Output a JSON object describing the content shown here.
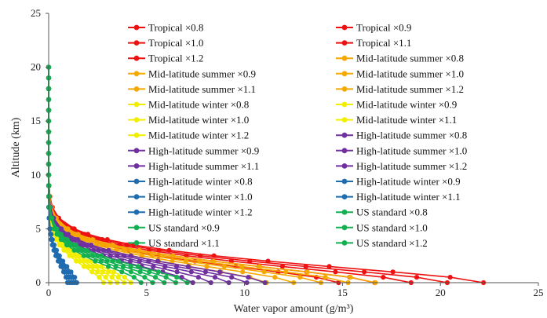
{
  "chart_data": {
    "type": "line",
    "xlabel": "Water vapor amount (g/m³)",
    "ylabel": "Altitude (km)",
    "xlim": [
      0,
      25
    ],
    "ylim": [
      0,
      25
    ],
    "x_ticks": [
      "0",
      "5",
      "10",
      "15",
      "20",
      "25"
    ],
    "y_ticks": [
      "0",
      "5",
      "10",
      "15",
      "20",
      "25"
    ],
    "grid": "none",
    "legend_position": "inside-top",
    "altitudes_km": [
      0,
      0.5,
      1,
      1.5,
      2,
      2.5,
      3,
      3.5,
      4,
      4.5,
      5,
      6,
      7,
      8,
      9,
      10,
      11,
      12,
      13,
      14,
      15,
      16,
      17,
      18,
      19,
      20
    ],
    "base_profiles": {
      "Tropical": {
        "color": "#ee1111",
        "surface": 18.5
      },
      "Mid-latitude summer": {
        "color": "#f5a800",
        "surface": 13.9
      },
      "Mid-latitude winter": {
        "color": "#f2ee00",
        "surface": 3.5
      },
      "High-latitude summer": {
        "color": "#7030a0",
        "surface": 9.2
      },
      "High-latitude winter": {
        "color": "#1f6cb0",
        "surface": 1.2
      },
      "US standard": {
        "color": "#12b050",
        "surface": 5.9
      }
    },
    "scale_factors": [
      0.8,
      0.9,
      1.0,
      1.1,
      1.2
    ],
    "series": [
      {
        "name": "Tropical ×0.8",
        "profile": "Tropical",
        "factor": 0.8
      },
      {
        "name": "Tropical ×0.9",
        "profile": "Tropical",
        "factor": 0.9
      },
      {
        "name": "Tropical ×1.0",
        "profile": "Tropical",
        "factor": 1.0
      },
      {
        "name": "Tropical ×1.1",
        "profile": "Tropical",
        "factor": 1.1
      },
      {
        "name": "Tropical ×1.2",
        "profile": "Tropical",
        "factor": 1.2
      },
      {
        "name": "Mid-latitude summer ×0.8",
        "profile": "Mid-latitude summer",
        "factor": 0.8
      },
      {
        "name": "Mid-latitude summer ×0.9",
        "profile": "Mid-latitude summer",
        "factor": 0.9
      },
      {
        "name": "Mid-latitude summer ×1.0",
        "profile": "Mid-latitude summer",
        "factor": 1.0
      },
      {
        "name": "Mid-latitude summer ×1.1",
        "profile": "Mid-latitude summer",
        "factor": 1.1
      },
      {
        "name": "Mid-latitude summer ×1.2",
        "profile": "Mid-latitude summer",
        "factor": 1.2
      },
      {
        "name": "Mid-latitude winter ×0.8",
        "profile": "Mid-latitude winter",
        "factor": 0.8
      },
      {
        "name": "Mid-latitude winter ×0.9",
        "profile": "Mid-latitude winter",
        "factor": 0.9
      },
      {
        "name": "Mid-latitude winter ×1.0",
        "profile": "Mid-latitude winter",
        "factor": 1.0
      },
      {
        "name": "Mid-latitude winter ×1.1",
        "profile": "Mid-latitude winter",
        "factor": 1.1
      },
      {
        "name": "Mid-latitude winter ×1.2",
        "profile": "Mid-latitude winter",
        "factor": 1.2
      },
      {
        "name": "High-latitude summer ×0.8",
        "profile": "High-latitude summer",
        "factor": 0.8
      },
      {
        "name": "High-latitude summer ×0.9",
        "profile": "High-latitude summer",
        "factor": 0.9
      },
      {
        "name": "High-latitude summer ×1.0",
        "profile": "High-latitude summer",
        "factor": 1.0
      },
      {
        "name": "High-latitude summer ×1.1",
        "profile": "High-latitude summer",
        "factor": 1.1
      },
      {
        "name": "High-latitude summer ×1.2",
        "profile": "High-latitude summer",
        "factor": 1.2
      },
      {
        "name": "High-latitude winter ×0.8",
        "profile": "High-latitude winter",
        "factor": 0.8
      },
      {
        "name": "High-latitude winter ×0.9",
        "profile": "High-latitude winter",
        "factor": 0.9
      },
      {
        "name": "High-latitude winter ×1.0",
        "profile": "High-latitude winter",
        "factor": 1.0
      },
      {
        "name": "High-latitude winter ×1.1",
        "profile": "High-latitude winter",
        "factor": 1.1
      },
      {
        "name": "High-latitude winter ×1.2",
        "profile": "High-latitude winter",
        "factor": 1.2
      },
      {
        "name": "US standard ×0.8",
        "profile": "US standard",
        "factor": 0.8
      },
      {
        "name": "US standard ×0.9",
        "profile": "US standard",
        "factor": 0.9
      },
      {
        "name": "US standard ×1.0",
        "profile": "US standard",
        "factor": 1.0
      },
      {
        "name": "US standard ×1.1",
        "profile": "US standard",
        "factor": 1.1
      },
      {
        "name": "US standard ×1.2",
        "profile": "US standard",
        "factor": 1.2
      }
    ]
  }
}
